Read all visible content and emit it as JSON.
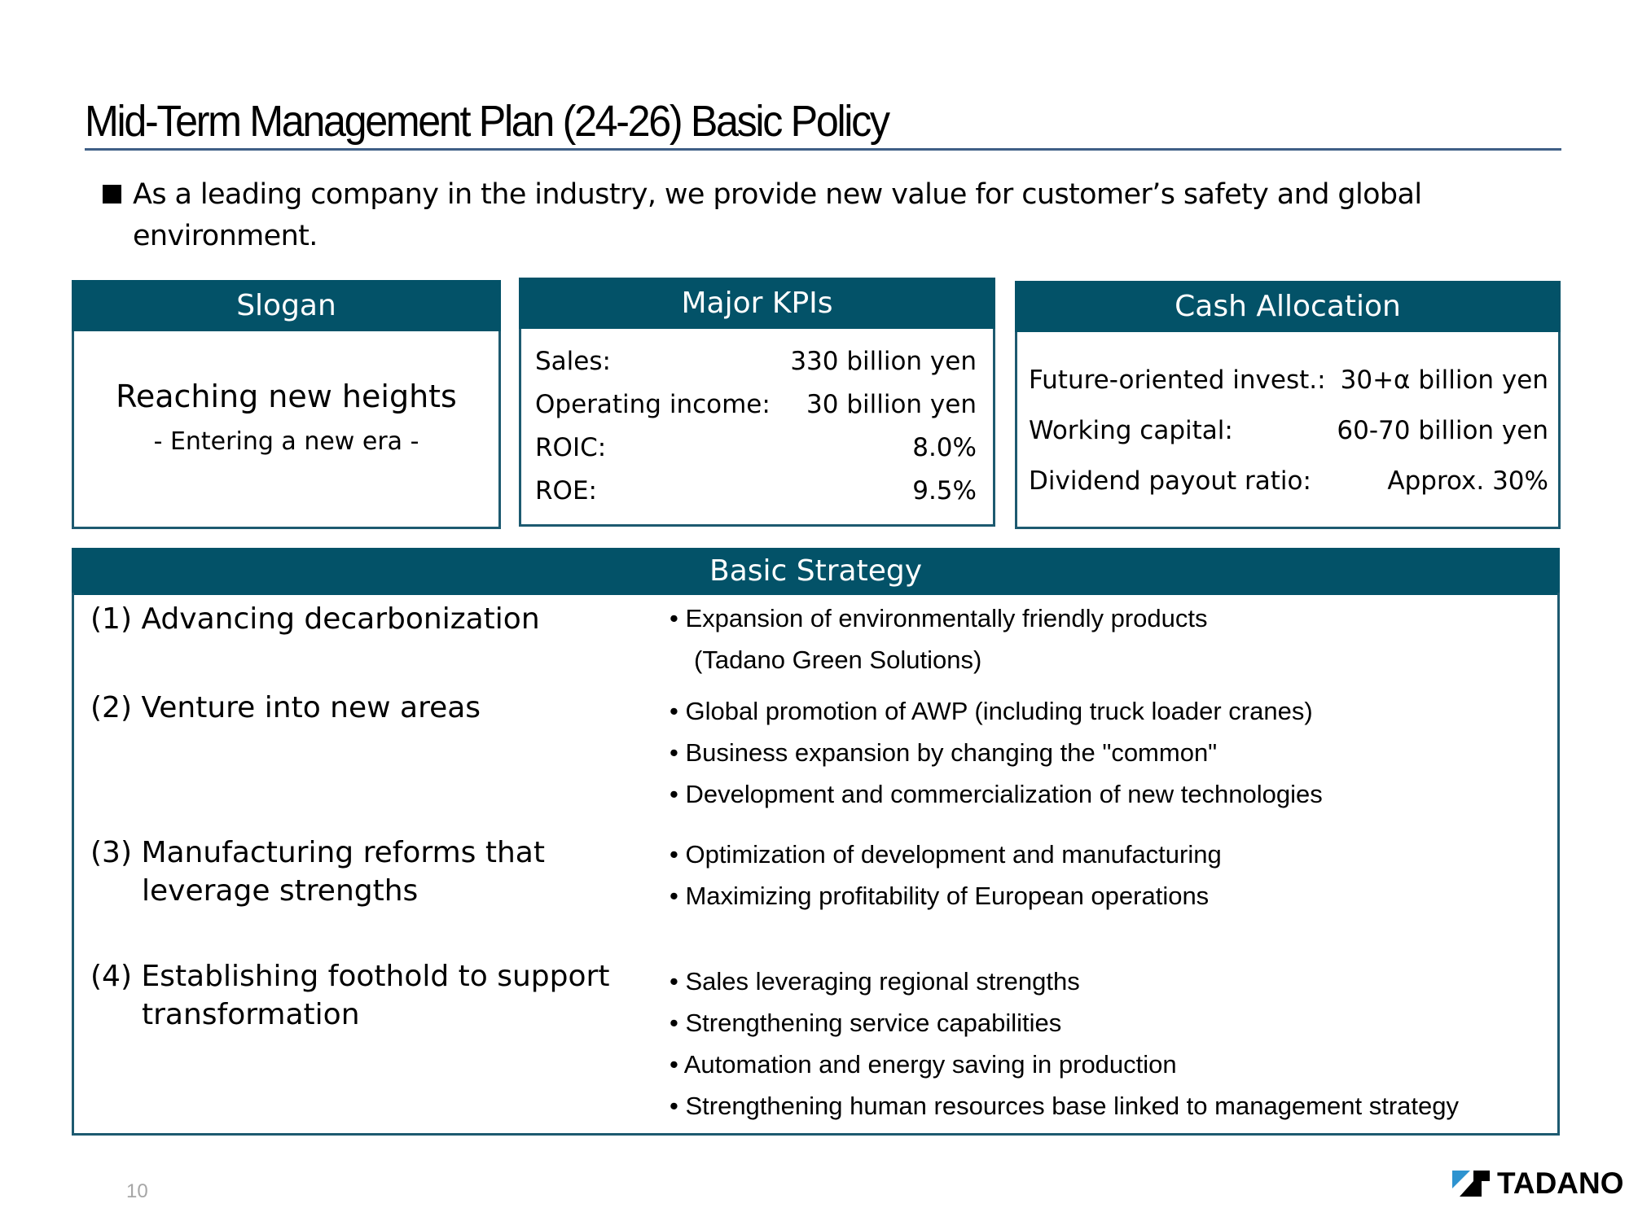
{
  "slide": {
    "title": "Mid-Term Management Plan (24-26) Basic Policy",
    "intro": "As a leading company in the industry, we provide new value for customer’s safety and global environment.",
    "page_number": "10"
  },
  "slogan": {
    "header": "Slogan",
    "main": "Reaching new heights",
    "sub": "- Entering a new era -"
  },
  "kpis": {
    "header": "Major KPIs",
    "rows": [
      {
        "label": "Sales:",
        "value": "330 billion yen"
      },
      {
        "label": "Operating income:",
        "value": "30 billion yen"
      },
      {
        "label": "ROIC:",
        "value": "8.0%"
      },
      {
        "label": "ROE:",
        "value": "9.5%"
      }
    ]
  },
  "cash": {
    "header": "Cash Allocation",
    "rows": [
      {
        "label": "Future-oriented invest.:",
        "value": "30+α billion yen"
      },
      {
        "label": "Working capital:",
        "value": "60-70 billion yen"
      },
      {
        "label": "Dividend payout ratio:",
        "value": "Approx. 30%"
      }
    ]
  },
  "strategy": {
    "header": "Basic Strategy",
    "items": [
      {
        "title_line1": "(1) Advancing decarbonization",
        "title_line2": "",
        "bullets": [
          "• Expansion of environmentally friendly products",
          "(Tadano Green Solutions)"
        ]
      },
      {
        "title_line1": "(2) Venture into new areas",
        "title_line2": "",
        "bullets": [
          "• Global promotion of AWP (including truck loader cranes)",
          "• Business expansion by changing the \"common\"",
          "• Development and commercialization of new technologies"
        ]
      },
      {
        "title_line1": "(3) Manufacturing reforms that",
        "title_line2": "leverage strengths",
        "bullets": [
          "• Optimization of development and manufacturing",
          "• Maximizing profitability of European operations"
        ]
      },
      {
        "title_line1": "(4) Establishing foothold to support",
        "title_line2": "transformation",
        "bullets": [
          "• Sales leveraging regional strengths",
          "• Strengthening service capabilities",
          "• Automation and energy saving in production",
          "• Strengthening human resources base linked to management strategy"
        ]
      }
    ]
  },
  "logo": {
    "text": "TADANO",
    "mark_color_blue": "#2d93d0",
    "mark_color_black": "#000000"
  },
  "colors": {
    "header_band": "#035268",
    "box_border": "#1d5a70",
    "title_rule": "#3f5f86",
    "page_number": "#a6a6a6"
  }
}
